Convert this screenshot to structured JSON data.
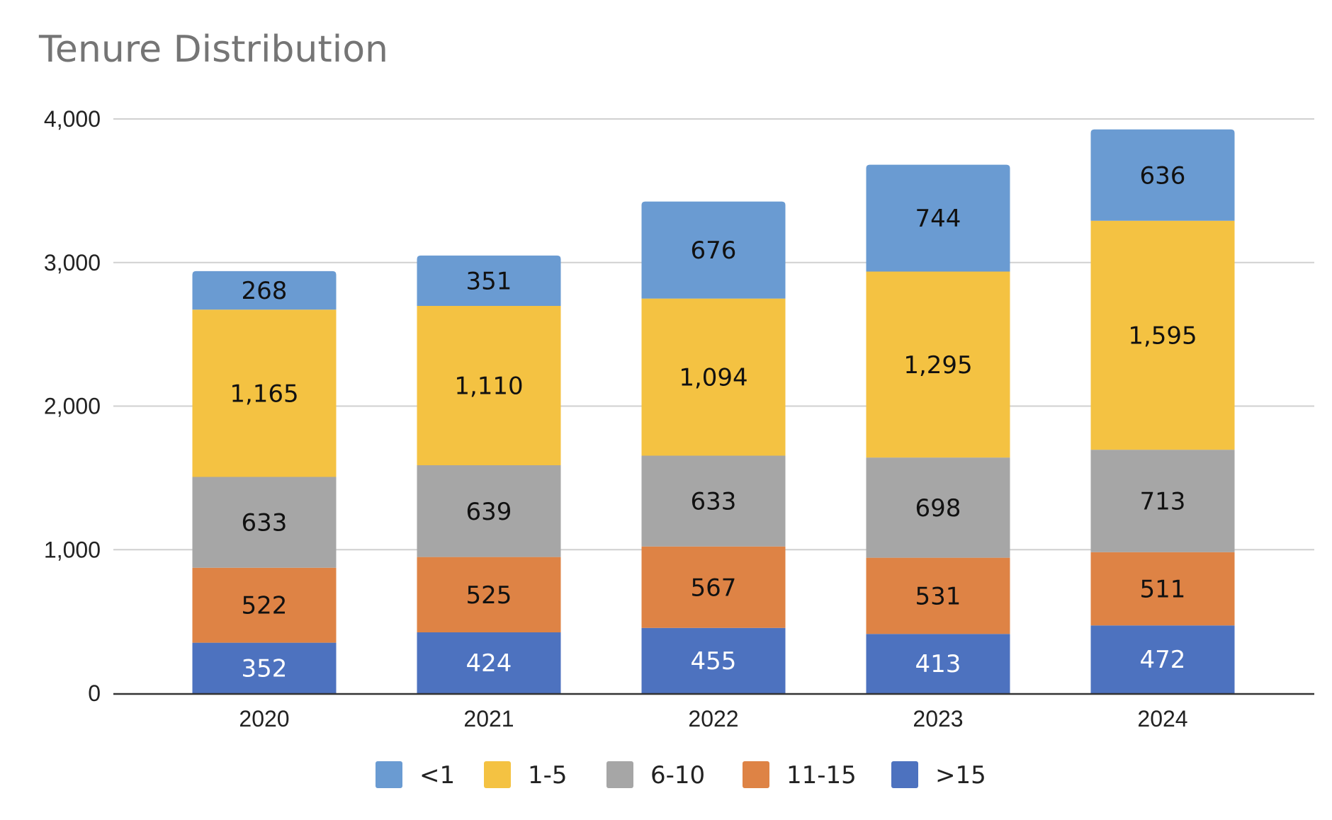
{
  "chart_data": {
    "type": "bar",
    "stacked": true,
    "title": "Tenure Distribution",
    "xlabel": "",
    "ylabel": "",
    "categories": [
      "2020",
      "2021",
      "2022",
      "2023",
      "2024"
    ],
    "ylim": [
      0,
      4000
    ],
    "y_ticks": [
      "0",
      "1,000",
      "2,000",
      "3,000",
      "4,000"
    ],
    "grid": true,
    "legend_position": "bottom",
    "series": [
      {
        "name": ">15",
        "color": "#4D72BF",
        "label_color": "#ffffff",
        "values": [
          352,
          424,
          455,
          413,
          472
        ],
        "labels": [
          "352",
          "424",
          "455",
          "413",
          "472"
        ]
      },
      {
        "name": "11-15",
        "color": "#DE8345",
        "label_color": "#111111",
        "values": [
          522,
          525,
          567,
          531,
          511
        ],
        "labels": [
          "522",
          "525",
          "567",
          "531",
          "511"
        ]
      },
      {
        "name": "6-10",
        "color": "#A6A6A6",
        "label_color": "#111111",
        "values": [
          633,
          639,
          633,
          698,
          713
        ],
        "labels": [
          "633",
          "639",
          "633",
          "698",
          "713"
        ]
      },
      {
        "name": "1-5",
        "color": "#F4C242",
        "label_color": "#111111",
        "values": [
          1165,
          1110,
          1094,
          1295,
          1595
        ],
        "labels": [
          "1,165",
          "1,110",
          "1,094",
          "1,295",
          "1,595"
        ]
      },
      {
        "name": "<1",
        "color": "#6A9BD2",
        "label_color": "#111111",
        "values": [
          268,
          351,
          676,
          744,
          636
        ],
        "labels": [
          "268",
          "351",
          "676",
          "744",
          "636"
        ]
      }
    ],
    "legend_order": [
      "<1",
      "1-5",
      "6-10",
      "11-15",
      ">15"
    ]
  }
}
